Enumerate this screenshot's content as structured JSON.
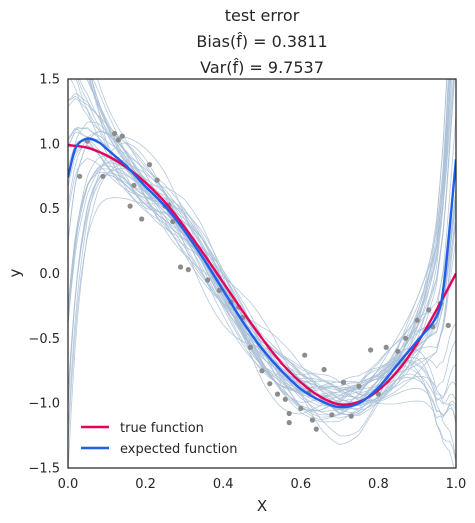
{
  "chart_data": {
    "type": "line",
    "title_lines": [
      "test error",
      "Bias($\\hat{f}$) = 0.3811",
      "Var($\\hat{f}$) = 9.7537"
    ],
    "title_display": [
      "test error",
      "Bias(f̂) = 0.3811",
      "Var(f̂) = 9.7537"
    ],
    "xlabel": "X",
    "ylabel": "y",
    "xlim": [
      0.0,
      1.0
    ],
    "ylim": [
      -1.5,
      1.5
    ],
    "xticks": [
      "0.0",
      "0.2",
      "0.4",
      "0.6",
      "0.8",
      "1.0"
    ],
    "yticks": [
      "1.5",
      "1.0",
      "0.5",
      "0.0",
      "−0.5",
      "−1.0",
      "−1.5"
    ],
    "grid": false,
    "legend_position": "lower-left",
    "colors": {
      "true_function": "#e6005c",
      "expected_function": "#1f5ee8",
      "fits": "#a9c0d6",
      "points": "#8c8c8c"
    },
    "series": [
      {
        "name": "true function",
        "x": [
          0.0,
          0.05,
          0.1,
          0.15,
          0.2,
          0.25,
          0.3,
          0.35,
          0.4,
          0.45,
          0.5,
          0.55,
          0.6,
          0.65,
          0.7,
          0.75,
          0.8,
          0.85,
          0.9,
          0.95,
          1.0
        ],
        "y": [
          0.99,
          0.97,
          0.91,
          0.82,
          0.7,
          0.55,
          0.36,
          0.15,
          -0.07,
          -0.29,
          -0.5,
          -0.69,
          -0.84,
          -0.95,
          -1.01,
          -0.99,
          -0.9,
          -0.75,
          -0.54,
          -0.28,
          0.0
        ]
      },
      {
        "name": "expected function",
        "x": [
          0.0,
          0.02,
          0.05,
          0.08,
          0.1,
          0.15,
          0.2,
          0.25,
          0.3,
          0.35,
          0.4,
          0.45,
          0.5,
          0.55,
          0.6,
          0.65,
          0.7,
          0.75,
          0.8,
          0.85,
          0.9,
          0.95,
          0.97,
          1.0
        ],
        "y": [
          0.74,
          0.97,
          1.04,
          1.01,
          0.96,
          0.83,
          0.67,
          0.52,
          0.33,
          0.11,
          -0.13,
          -0.37,
          -0.58,
          -0.75,
          -0.89,
          -0.98,
          -1.03,
          -1.0,
          -0.88,
          -0.7,
          -0.52,
          -0.33,
          -0.05,
          0.88
        ]
      }
    ],
    "points": [
      {
        "x": 0.03,
        "y": 0.75
      },
      {
        "x": 0.05,
        "y": 1.02
      },
      {
        "x": 0.09,
        "y": 0.75
      },
      {
        "x": 0.12,
        "y": 1.08
      },
      {
        "x": 0.13,
        "y": 1.03
      },
      {
        "x": 0.14,
        "y": 1.06
      },
      {
        "x": 0.16,
        "y": 0.52
      },
      {
        "x": 0.17,
        "y": 0.68
      },
      {
        "x": 0.19,
        "y": 0.42
      },
      {
        "x": 0.21,
        "y": 0.84
      },
      {
        "x": 0.23,
        "y": 0.72
      },
      {
        "x": 0.25,
        "y": 0.52
      },
      {
        "x": 0.26,
        "y": 0.53
      },
      {
        "x": 0.27,
        "y": 0.4
      },
      {
        "x": 0.29,
        "y": 0.05
      },
      {
        "x": 0.31,
        "y": 0.03
      },
      {
        "x": 0.36,
        "y": -0.05
      },
      {
        "x": 0.39,
        "y": -0.13
      },
      {
        "x": 0.42,
        "y": -0.22
      },
      {
        "x": 0.44,
        "y": -0.26
      },
      {
        "x": 0.45,
        "y": -0.34
      },
      {
        "x": 0.47,
        "y": -0.57
      },
      {
        "x": 0.5,
        "y": -0.75
      },
      {
        "x": 0.52,
        "y": -0.85
      },
      {
        "x": 0.54,
        "y": -0.93
      },
      {
        "x": 0.56,
        "y": -0.97
      },
      {
        "x": 0.57,
        "y": -1.08
      },
      {
        "x": 0.57,
        "y": -1.15
      },
      {
        "x": 0.6,
        "y": -1.04
      },
      {
        "x": 0.61,
        "y": -0.63
      },
      {
        "x": 0.62,
        "y": -0.92
      },
      {
        "x": 0.63,
        "y": -1.13
      },
      {
        "x": 0.64,
        "y": -1.2
      },
      {
        "x": 0.66,
        "y": -0.74
      },
      {
        "x": 0.68,
        "y": -1.09
      },
      {
        "x": 0.71,
        "y": -0.84
      },
      {
        "x": 0.73,
        "y": -1.1
      },
      {
        "x": 0.75,
        "y": -0.87
      },
      {
        "x": 0.78,
        "y": -0.59
      },
      {
        "x": 0.8,
        "y": -0.93
      },
      {
        "x": 0.82,
        "y": -0.57
      },
      {
        "x": 0.85,
        "y": -0.6
      },
      {
        "x": 0.87,
        "y": -0.5
      },
      {
        "x": 0.9,
        "y": -0.36
      },
      {
        "x": 0.93,
        "y": -0.28
      },
      {
        "x": 0.94,
        "y": -0.41
      },
      {
        "x": 0.96,
        "y": -0.23
      },
      {
        "x": 0.98,
        "y": -0.4
      }
    ],
    "fit_count": 40
  }
}
